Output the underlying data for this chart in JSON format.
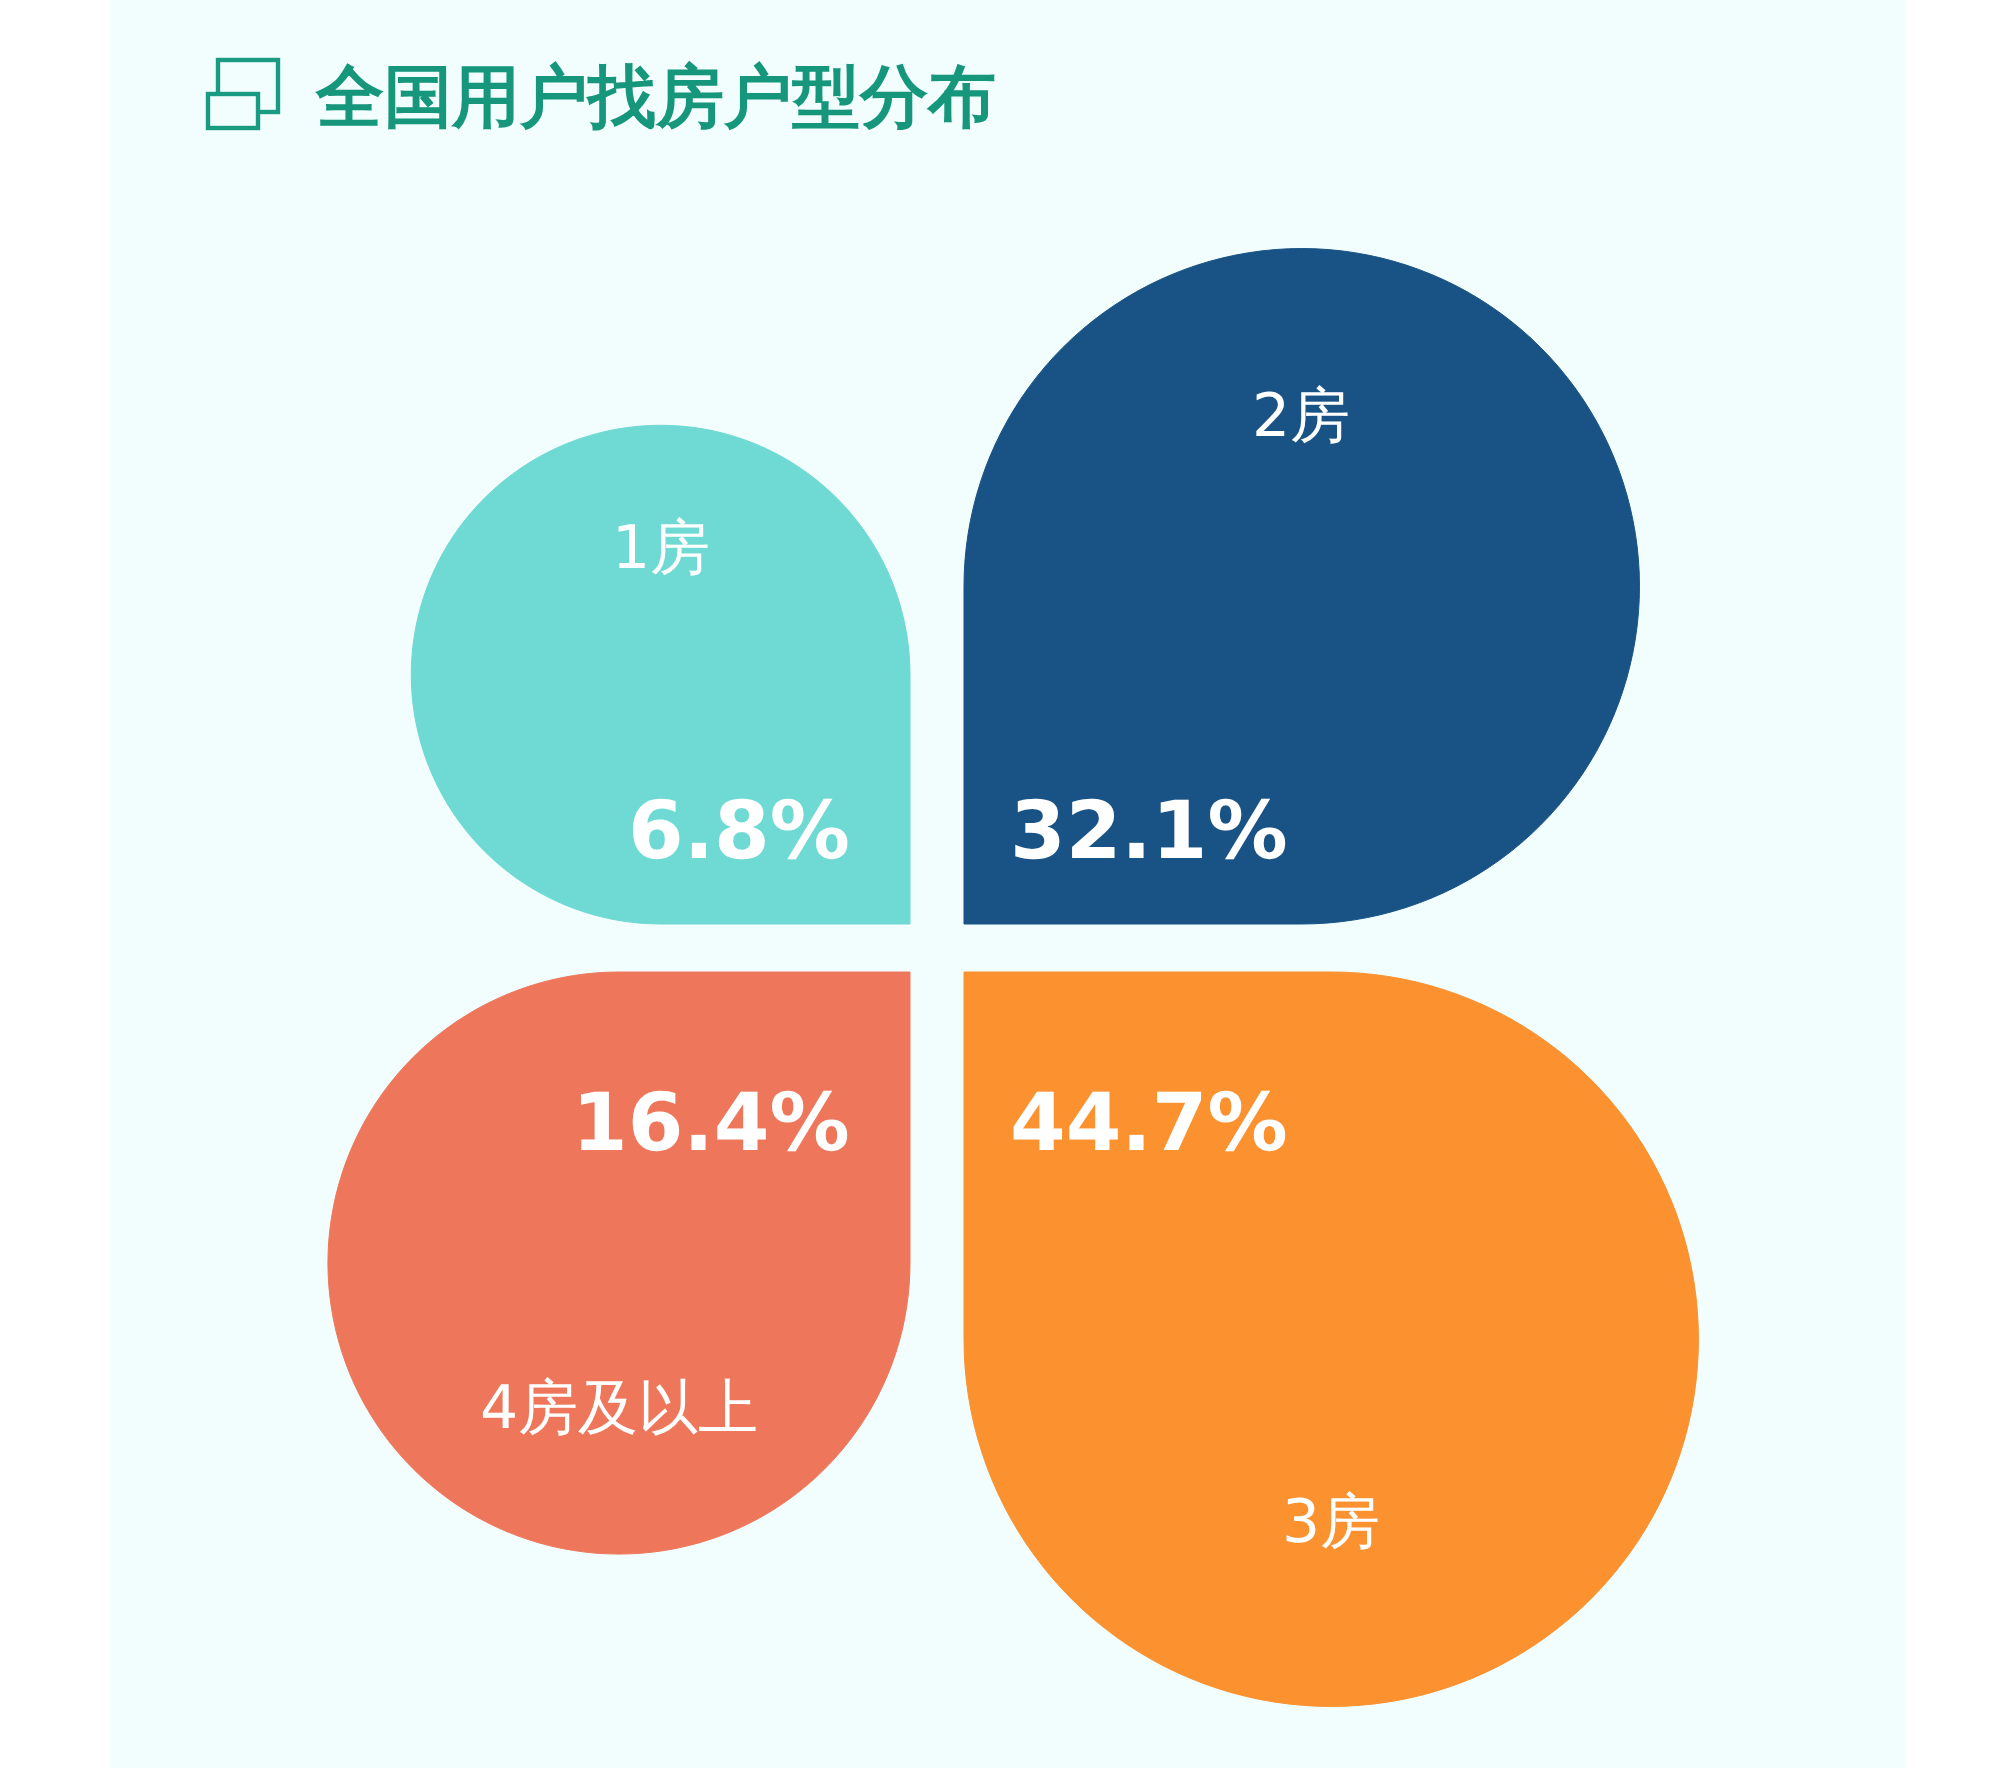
{
  "chart_data": {
    "type": "other",
    "title": "全国用户找房户型分布",
    "categories": [
      "1房",
      "2房",
      "3房",
      "4房及以上"
    ],
    "values": [
      6.8,
      32.1,
      44.7,
      16.4
    ],
    "value_labels": [
      "6.8%",
      "32.1%",
      "44.7%",
      "16.4%"
    ],
    "colors": [
      "#6fd9d3",
      "#195385",
      "#fb912f",
      "#ee775b"
    ]
  }
}
